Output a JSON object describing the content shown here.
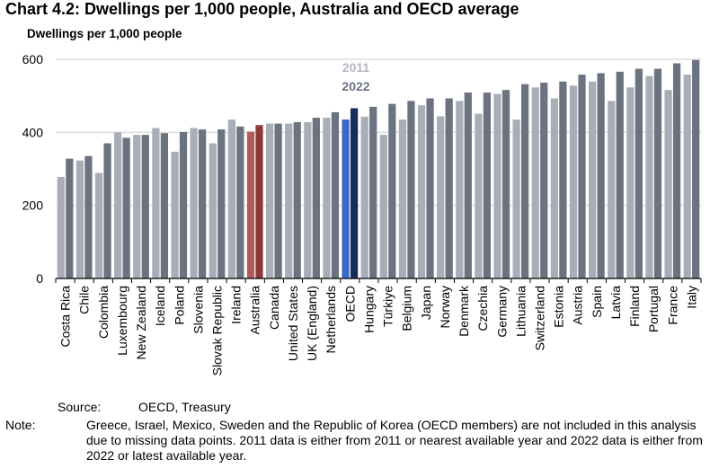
{
  "title": "Chart 4.2: Dwellings per 1,000 people, Australia and OECD average",
  "source_label": "Source:",
  "source_text": "OECD, Treasury",
  "note_label": "Note:",
  "note_text": "Greece, Israel, Mexico, Sweden and the Republic of Korea (OECD members) are not included in this analysis due to missing data points. 2011 data is either from 2011 or nearest available year and 2022 data is either from 2022 or latest available year.",
  "colors": {
    "y2011": "#a9adb7",
    "y2022": "#6b7381",
    "aus2011": "#b25b56",
    "aus2022": "#8a3b39",
    "oecd2011": "#3a68c6",
    "oecd2022": "#162d5a",
    "legend2011": "#b4b7bf",
    "legend2022": "#6b7381"
  },
  "chart_data": {
    "type": "bar",
    "title": "Chart 4.2: Dwellings per 1,000 people, Australia and OECD average",
    "ylabel": "Dwellings per 1,000 people",
    "xlabel": "",
    "ylim": [
      0,
      600
    ],
    "yticks": [
      "0",
      "200",
      "400",
      "600"
    ],
    "grid": true,
    "legend": "top-center",
    "categories": [
      "Costa Rica",
      "Chile",
      "Colombia",
      "Luxembourg",
      "New Zealand",
      "Iceland",
      "Poland",
      "Slovenia",
      "Slovak Republic",
      "Ireland",
      "Australia",
      "Canada",
      "United States",
      "UK (England)",
      "Netherlands",
      "OECD",
      "Hungary",
      "Türkiye",
      "Belgium",
      "Japan",
      "Norway",
      "Denmark",
      "Czechia",
      "Germany",
      "Lithuania",
      "Switzerland",
      "Estonia",
      "Austria",
      "Spain",
      "Latvia",
      "Finland",
      "Portugal",
      "France",
      "Italy"
    ],
    "highlight": {
      "Australia": [
        "aus2011",
        "aus2022"
      ],
      "OECD": [
        "oecd2011",
        "oecd2022"
      ]
    },
    "series": [
      {
        "name": "2011",
        "values": [
          278,
          323,
          289,
          400,
          393,
          412,
          347,
          412,
          370,
          435,
          402,
          424,
          424,
          428,
          440,
          435,
          443,
          393,
          435,
          474,
          444,
          486,
          451,
          505,
          435,
          523,
          493,
          528,
          539,
          486,
          523,
          554,
          516,
          558
        ]
      },
      {
        "name": "2022",
        "values": [
          328,
          335,
          370,
          385,
          393,
          398,
          401,
          408,
          408,
          416,
          420,
          424,
          428,
          440,
          455,
          466,
          470,
          478,
          486,
          493,
          493,
          509,
          509,
          516,
          532,
          536,
          539,
          558,
          562,
          566,
          574,
          574,
          589,
          598
        ]
      }
    ]
  }
}
